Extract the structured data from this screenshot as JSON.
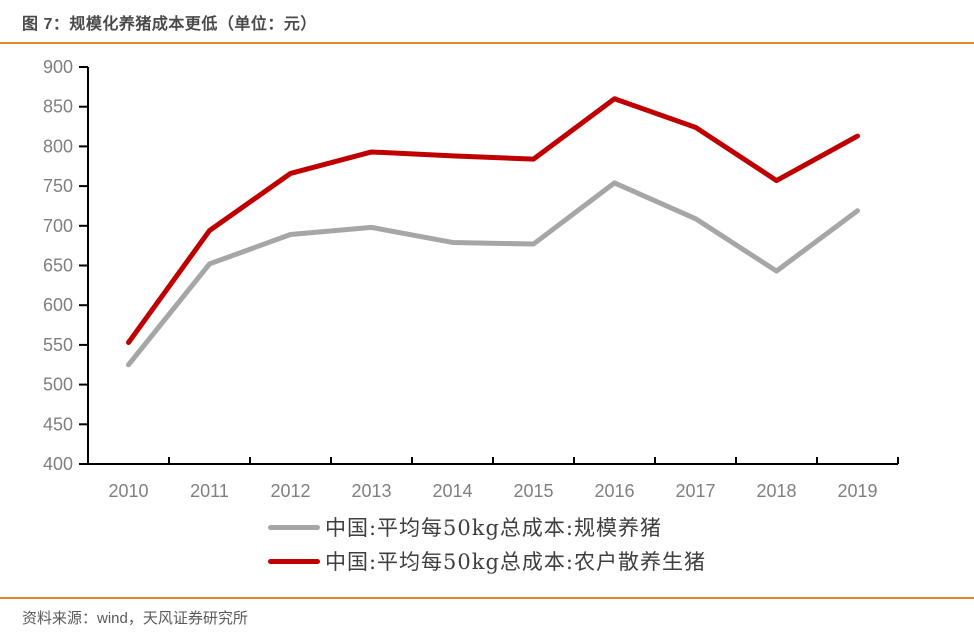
{
  "header": {
    "title": "图 7：规模化养猪成本更低（单位：元）"
  },
  "source": {
    "label": "资料来源：wind，天风证券研究所"
  },
  "colors": {
    "accent_rule": "#E5862B",
    "title_text": "#4A4A4A",
    "axis_line": "#000000",
    "tick_label": "#7F7F7F",
    "legend_text": "#3F3F3F",
    "source_text": "#595959"
  },
  "chart_data": {
    "type": "line",
    "title": "图 7：规模化养猪成本更低（单位：元）",
    "categories": [
      "2010",
      "2011",
      "2012",
      "2013",
      "2014",
      "2015",
      "2016",
      "2017",
      "2018",
      "2019"
    ],
    "series": [
      {
        "name": "中国:平均每50kg总成本:规模养猪",
        "color": "#A6A6A6",
        "values": [
          525,
          652,
          689,
          698,
          679,
          677,
          754,
          709,
          643,
          719
        ]
      },
      {
        "name": "中国:平均每50kg总成本:农户散养生猪",
        "color": "#C00000",
        "values": [
          553,
          694,
          766,
          793,
          788,
          784,
          860,
          824,
          757,
          813
        ]
      }
    ],
    "ylim": [
      400,
      900
    ],
    "ytick_step": 50,
    "xlabel": "",
    "ylabel": "",
    "grid": false,
    "legend_position": "bottom"
  }
}
